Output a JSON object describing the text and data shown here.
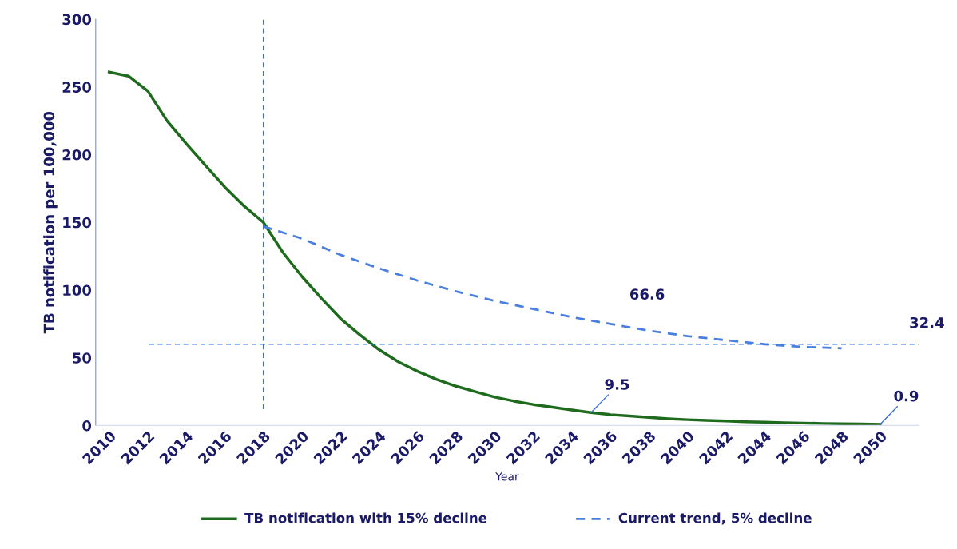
{
  "chart_data": {
    "type": "line",
    "ylabel": "TB notification per 100,000",
    "xlabel": "Year",
    "x": [
      2010,
      2011,
      2012,
      2013,
      2014,
      2015,
      2016,
      2017,
      2018,
      2019,
      2020,
      2021,
      2022,
      2023,
      2024,
      2025,
      2026,
      2027,
      2028,
      2029,
      2030,
      2031,
      2032,
      2033,
      2034,
      2035,
      2036,
      2037,
      2038,
      2039,
      2040,
      2041,
      2042,
      2043,
      2044,
      2045,
      2046,
      2047,
      2048,
      2049,
      2050
    ],
    "series": [
      {
        "name": "TB notification with 15% decline",
        "color": "#1e6b1e",
        "line_style": "solid",
        "values": [
          261,
          258,
          247,
          225,
          208,
          192,
          176,
          162,
          150,
          128,
          110,
          94,
          79,
          67,
          56,
          47,
          40,
          34,
          29,
          25,
          21,
          18,
          15.5,
          13.5,
          11.5,
          9.5,
          8,
          7,
          6,
          5,
          4.3,
          3.8,
          3.3,
          2.8,
          2.4,
          2.1,
          1.8,
          1.5,
          1.3,
          1.1,
          0.9
        ]
      },
      {
        "name": "Current trend, 5% decline",
        "color": "#4a7fe0",
        "line_style": "dashed",
        "x": [
          2018,
          2020,
          2022,
          2024,
          2026,
          2028,
          2030,
          2032,
          2034,
          2036,
          2038,
          2040,
          2042,
          2044,
          2046,
          2048
        ],
        "values": [
          147,
          138,
          126,
          116,
          107,
          99,
          92,
          86,
          80,
          75,
          70,
          66,
          63,
          60,
          58,
          57
        ]
      }
    ],
    "xlim": [
      2009.3,
      2052
    ],
    "xticks": [
      2010,
      2012,
      2014,
      2016,
      2018,
      2020,
      2022,
      2024,
      2026,
      2028,
      2030,
      2032,
      2034,
      2036,
      2038,
      2040,
      2042,
      2044,
      2046,
      2048,
      2050
    ],
    "ylim": [
      0,
      300
    ],
    "yticks": [
      0,
      50,
      100,
      150,
      200,
      250,
      300
    ],
    "ref_lines": [
      {
        "axis": "x",
        "value": 2018,
        "color": "#3a6fd8",
        "line_style": "dashed"
      },
      {
        "axis": "y",
        "value": 60,
        "color": "#3a6fd8",
        "line_style": "dashed"
      }
    ],
    "annotations": [
      "66.6",
      "32.4",
      {
        "text": "9.5",
        "x": 2035,
        "y": 9.5
      },
      {
        "text": "0.9",
        "x": 2050,
        "y": 0.9
      }
    ],
    "grid": false,
    "legend": "bottom",
    "marker": "none"
  }
}
